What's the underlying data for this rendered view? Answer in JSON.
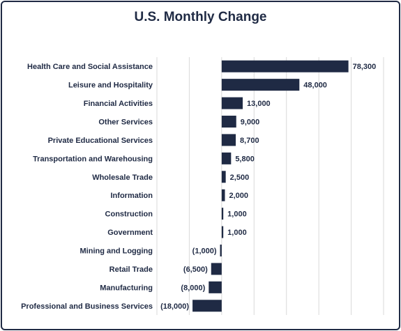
{
  "chart_data": {
    "type": "bar",
    "orientation": "horizontal",
    "title": "U.S. Monthly Change",
    "categories": [
      "Health Care and Social Assistance",
      "Leisure and Hospitality",
      "Financial Activities",
      "Other Services",
      "Private Educational Services",
      "Transportation and Warehousing",
      "Wholesale Trade",
      "Information",
      "Construction",
      "Government",
      "Mining and Logging",
      "Retail Trade",
      "Manufacturing",
      "Professional and Business Services"
    ],
    "values": [
      78300,
      48000,
      13000,
      9000,
      8700,
      5800,
      2500,
      2000,
      1000,
      1000,
      -1000,
      -6500,
      -8000,
      -18000
    ],
    "value_labels": [
      "78,300",
      "48,000",
      "13,000",
      "9,000",
      "8,700",
      "5,800",
      "2,500",
      "2,000",
      "1,000",
      "1,000",
      "(1,000)",
      "(6,500)",
      "(8,000)",
      "(18,000)"
    ],
    "xlim": [
      -40000,
      100000
    ],
    "grid": true,
    "bar_color": "#1f2a44"
  }
}
